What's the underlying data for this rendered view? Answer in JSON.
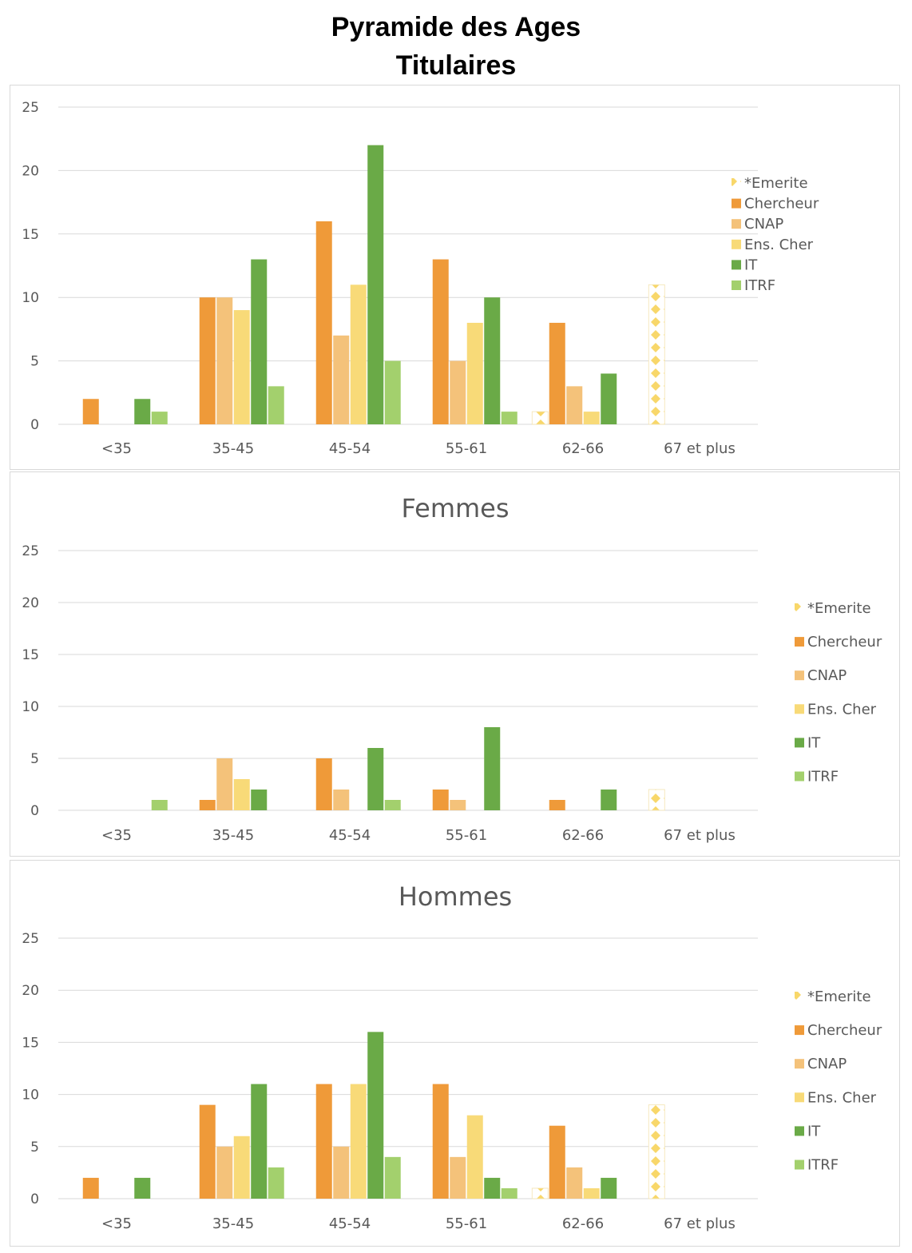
{
  "page": {
    "title_line1": "Pyramide des Ages",
    "title_line2": "Titulaires"
  },
  "colors": {
    "*Emerite": "#f8d76a",
    "Chercheur": "#ef9a39",
    "CNAP": "#f4c27a",
    "Ens. Cher": "#f8da78",
    "IT": "#6aaa47",
    "ITRF": "#a3d06d",
    "grid": "#d9d9d9",
    "text": "#595959"
  },
  "chart_data": [
    {
      "type": "bar",
      "title": "",
      "categories": [
        "<35",
        "35-45",
        "45-54",
        "55-61",
        "62-66",
        "67 et plus"
      ],
      "ylim": [
        0,
        25
      ],
      "yticks": [
        0,
        5,
        10,
        15,
        20,
        25
      ],
      "grid": true,
      "legend_position": "right",
      "series": [
        {
          "name": "*Emerite",
          "pattern": "checker",
          "values": [
            0,
            0,
            0,
            0,
            1,
            11
          ]
        },
        {
          "name": "Chercheur",
          "values": [
            2,
            10,
            16,
            13,
            8,
            0
          ]
        },
        {
          "name": "CNAP",
          "values": [
            0,
            10,
            7,
            5,
            3,
            0
          ]
        },
        {
          "name": "Ens. Cher",
          "values": [
            0,
            9,
            11,
            8,
            1,
            0
          ]
        },
        {
          "name": "IT",
          "values": [
            2,
            13,
            22,
            10,
            4,
            0
          ]
        },
        {
          "name": "ITRF",
          "values": [
            1,
            3,
            5,
            1,
            0,
            0
          ]
        }
      ]
    },
    {
      "type": "bar",
      "title": "Femmes",
      "categories": [
        "<35",
        "35-45",
        "45-54",
        "55-61",
        "62-66",
        "67 et plus"
      ],
      "ylim": [
        0,
        25
      ],
      "yticks": [
        0,
        5,
        10,
        15,
        20,
        25
      ],
      "grid": true,
      "legend_position": "right",
      "series": [
        {
          "name": "*Emerite",
          "pattern": "checker",
          "values": [
            0,
            0,
            0,
            0,
            0,
            2
          ]
        },
        {
          "name": "Chercheur",
          "values": [
            0,
            1,
            5,
            2,
            1,
            0
          ]
        },
        {
          "name": "CNAP",
          "values": [
            0,
            5,
            2,
            1,
            0,
            0
          ]
        },
        {
          "name": "Ens. Cher",
          "values": [
            0,
            3,
            0,
            0,
            0,
            0
          ]
        },
        {
          "name": "IT",
          "values": [
            0,
            2,
            6,
            8,
            2,
            0
          ]
        },
        {
          "name": "ITRF",
          "values": [
            1,
            0,
            1,
            0,
            0,
            0
          ]
        }
      ]
    },
    {
      "type": "bar",
      "title": "Hommes",
      "categories": [
        "<35",
        "35-45",
        "45-54",
        "55-61",
        "62-66",
        "67 et plus"
      ],
      "ylim": [
        0,
        25
      ],
      "yticks": [
        0,
        5,
        10,
        15,
        20,
        25
      ],
      "grid": true,
      "legend_position": "right",
      "series": [
        {
          "name": "*Emerite",
          "pattern": "checker",
          "values": [
            0,
            0,
            0,
            0,
            1,
            9
          ]
        },
        {
          "name": "Chercheur",
          "values": [
            2,
            9,
            11,
            11,
            7,
            0
          ]
        },
        {
          "name": "CNAP",
          "values": [
            0,
            5,
            5,
            4,
            3,
            0
          ]
        },
        {
          "name": "Ens. Cher",
          "values": [
            0,
            6,
            11,
            8,
            1,
            0
          ]
        },
        {
          "name": "IT",
          "values": [
            2,
            11,
            16,
            2,
            2,
            0
          ]
        },
        {
          "name": "ITRF",
          "values": [
            0,
            3,
            4,
            1,
            0,
            0
          ]
        }
      ]
    }
  ]
}
